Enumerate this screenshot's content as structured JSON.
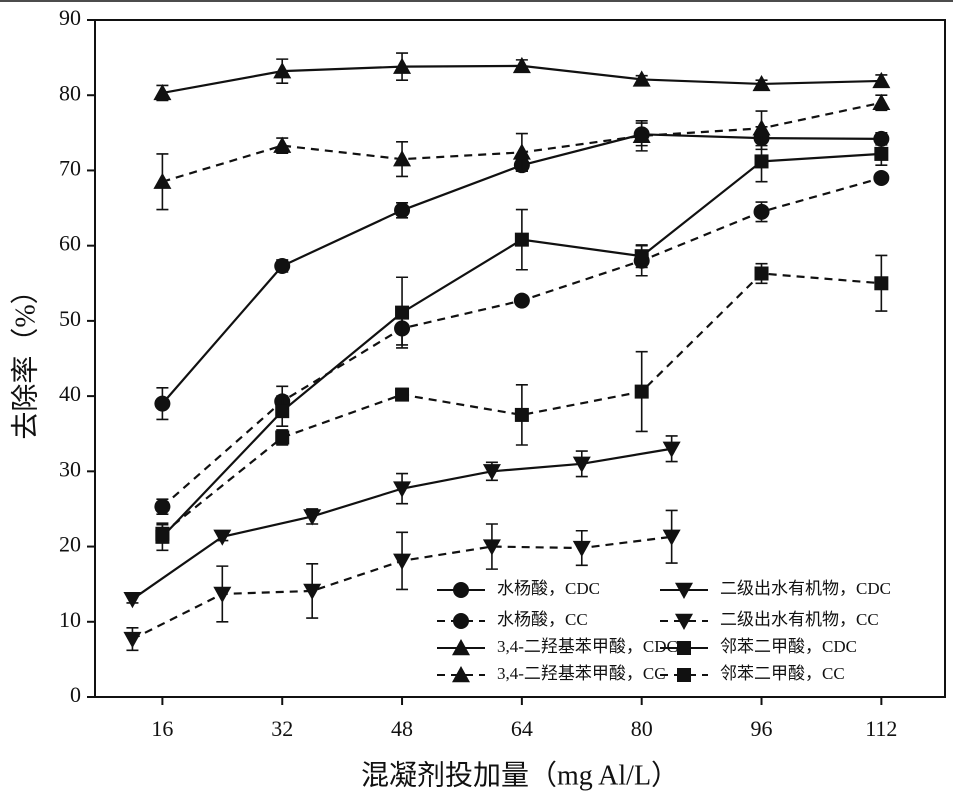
{
  "chart_data": {
    "type": "line",
    "xlabel": "混凝剂投加量（mg Al/L）",
    "ylabel": "去除率（%）",
    "xlim": [
      7,
      120.5
    ],
    "ylim": [
      0,
      90
    ],
    "xticks": [
      16,
      32,
      48,
      64,
      80,
      96,
      112
    ],
    "yticks": [
      0,
      10,
      20,
      30,
      40,
      50,
      60,
      70,
      80,
      90
    ],
    "series": [
      {
        "name": "水杨酸，CDC",
        "marker": "circle",
        "dashed": false,
        "color": "#111111",
        "x": [
          16,
          32,
          48,
          64,
          80,
          96,
          112
        ],
        "values": [
          39,
          57.3,
          64.7,
          70.7,
          74.8,
          74.3,
          74.2
        ],
        "errors": [
          2.1,
          0.8,
          1.0,
          0.8,
          1.5,
          1.5,
          0.8
        ]
      },
      {
        "name": "水杨酸，CC",
        "marker": "circle",
        "dashed": true,
        "color": "#111111",
        "x": [
          16,
          32,
          48,
          64,
          80,
          96,
          112
        ],
        "values": [
          25.3,
          39.3,
          49,
          52.7,
          58,
          64.5,
          69
        ],
        "errors": [
          1.0,
          2.0,
          2.2,
          0.5,
          2.0,
          1.3,
          0.5
        ]
      },
      {
        "name": "3,4-二羟基苯甲酸，CDC",
        "marker": "triangle-up",
        "dashed": false,
        "color": "#111111",
        "x": [
          16,
          32,
          48,
          64,
          80,
          96,
          112
        ],
        "values": [
          80.3,
          83.2,
          83.8,
          83.9,
          82.1,
          81.5,
          81.9
        ],
        "errors": [
          1.0,
          1.6,
          1.8,
          0.8,
          0.5,
          0.5,
          0.8
        ]
      },
      {
        "name": "3,4-二羟基苯甲酸，CC",
        "marker": "triangle-up",
        "dashed": true,
        "color": "#111111",
        "x": [
          16,
          32,
          48,
          64,
          80,
          96,
          112
        ],
        "values": [
          68.5,
          73.3,
          71.5,
          72.4,
          74.6,
          75.6,
          79
        ],
        "errors": [
          3.7,
          1.0,
          2.3,
          2.5,
          2.0,
          2.3,
          1.0
        ]
      },
      {
        "name": "二级出水有机物，CDC",
        "marker": "triangle-down",
        "dashed": false,
        "color": "#111111",
        "x": [
          12,
          24,
          36,
          48,
          60,
          72,
          84
        ],
        "values": [
          13,
          21.3,
          24,
          27.7,
          30,
          31,
          33
        ],
        "errors": [
          0.5,
          0.5,
          1.0,
          2.0,
          1.2,
          1.7,
          1.7
        ]
      },
      {
        "name": "二级出水有机物，CC",
        "marker": "triangle-down",
        "dashed": true,
        "color": "#111111",
        "x": [
          12,
          24,
          36,
          48,
          60,
          72,
          84
        ],
        "values": [
          7.7,
          13.7,
          14.1,
          18.1,
          20,
          19.8,
          21.3
        ],
        "errors": [
          1.5,
          3.7,
          3.6,
          3.8,
          3.0,
          2.3,
          3.5
        ]
      },
      {
        "name": "邻苯二甲酸，CDC",
        "marker": "square",
        "dashed": false,
        "color": "#111111",
        "x": [
          16,
          32,
          48,
          64,
          80,
          96,
          112
        ],
        "values": [
          21.3,
          38,
          51.1,
          60.8,
          58.6,
          71.2,
          72.2
        ],
        "errors": [
          1.8,
          2.0,
          4.7,
          4.0,
          1.5,
          2.7,
          1.5
        ]
      },
      {
        "name": "邻苯二甲酸，CC",
        "marker": "square",
        "dashed": true,
        "color": "#111111",
        "x": [
          16,
          32,
          48,
          64,
          80,
          96,
          112
        ],
        "values": [
          21.7,
          34.5,
          40.2,
          37.5,
          40.6,
          56.3,
          55
        ],
        "errors": [
          1.2,
          1.0,
          0.8,
          4.0,
          5.3,
          1.3,
          3.7
        ]
      }
    ]
  }
}
